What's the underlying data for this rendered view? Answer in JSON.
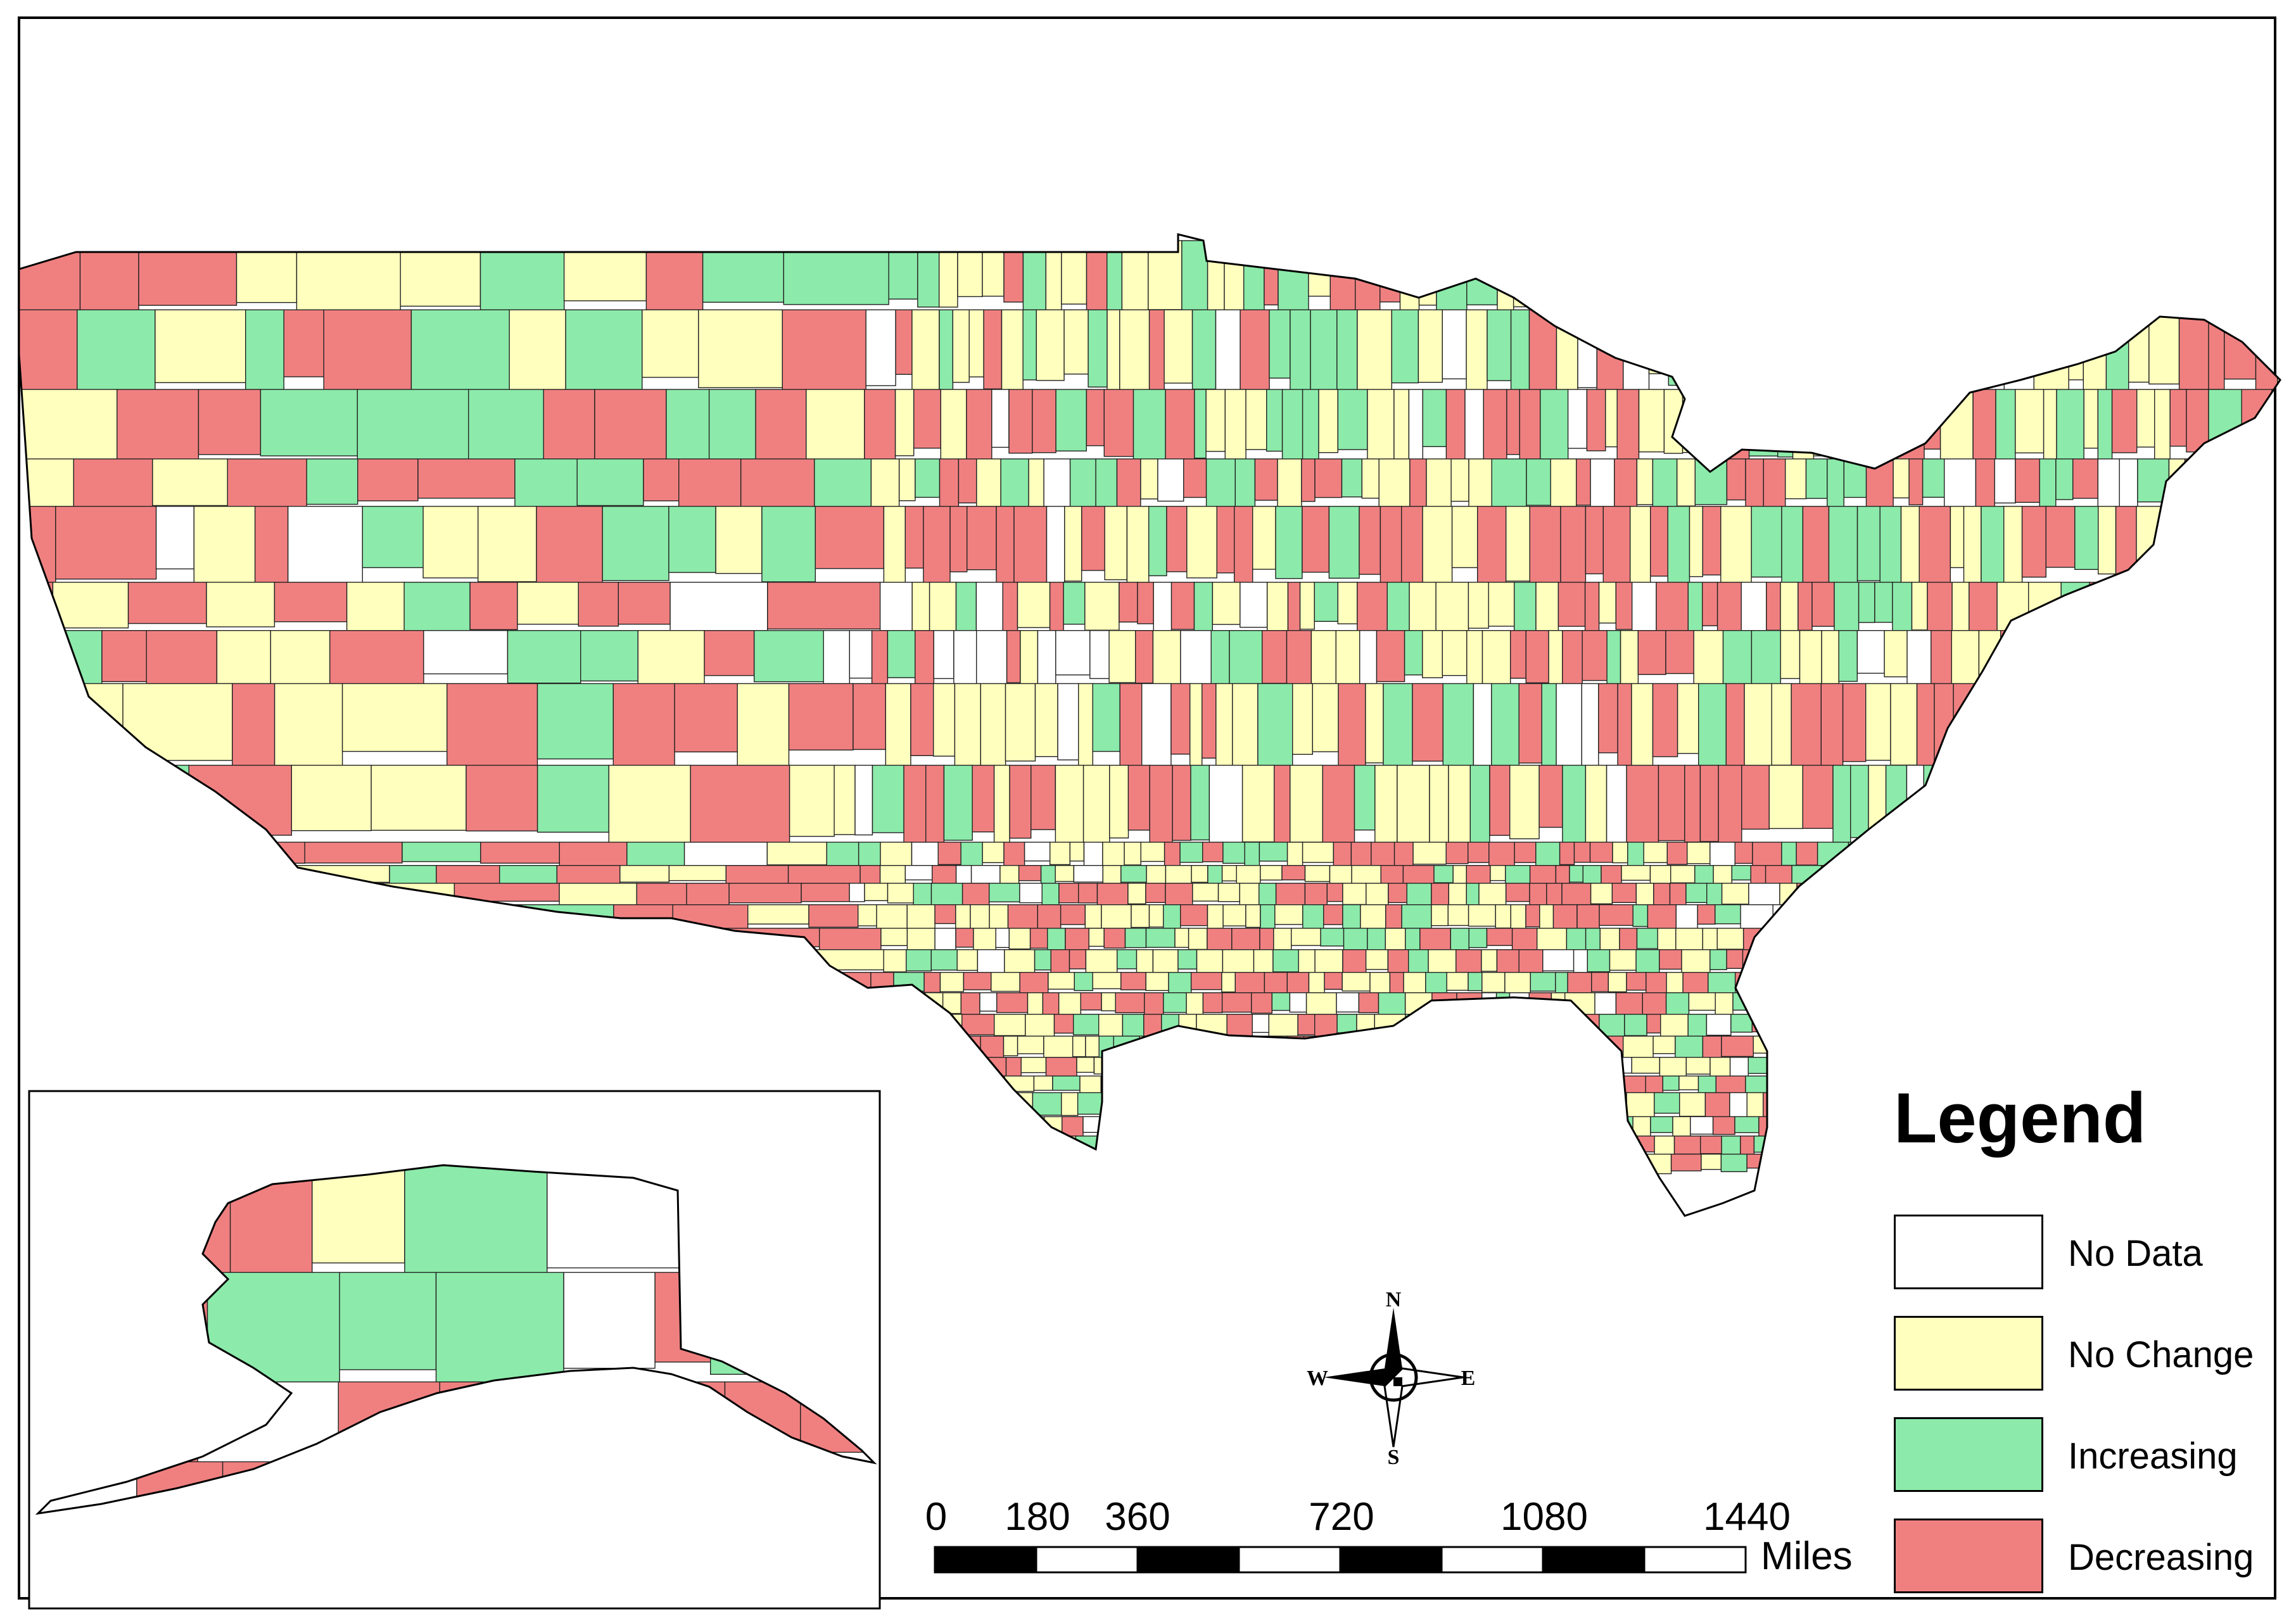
{
  "legend": {
    "title": "Legend",
    "items": [
      {
        "label": "No Data",
        "color": "#ffffff"
      },
      {
        "label": "No Change",
        "color": "#ffffbe"
      },
      {
        "label": "Increasing",
        "color": "#8ceaaa"
      },
      {
        "label": "Decreasing",
        "color": "#f08080"
      }
    ]
  },
  "scale_bar": {
    "ticks": [
      "0",
      "180",
      "360",
      "720",
      "1080",
      "1440"
    ],
    "unit": "Miles"
  },
  "compass": {
    "n": "N",
    "s": "S",
    "e": "E",
    "w": "W"
  }
}
